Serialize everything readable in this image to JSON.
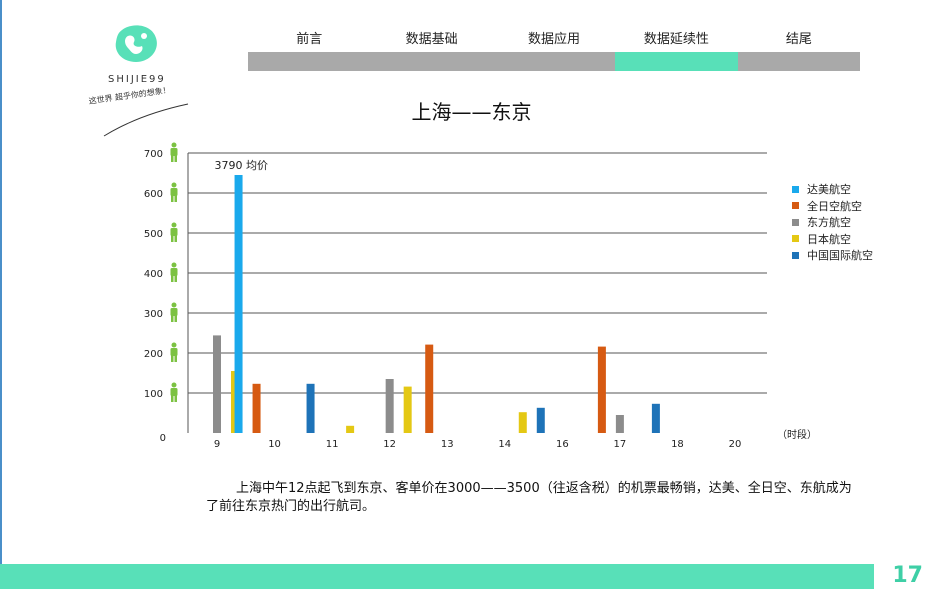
{
  "logo": {
    "brand": "SHIJIE99",
    "slogan": "这世界 超乎你的想象！"
  },
  "nav": {
    "items": [
      {
        "label": "前言",
        "active": false
      },
      {
        "label": "数据基础",
        "active": false
      },
      {
        "label": "数据应用",
        "active": false
      },
      {
        "label": "数据延续性",
        "active": true
      },
      {
        "label": "结尾",
        "active": false
      }
    ]
  },
  "colors": {
    "accent": "#58e0b8",
    "nav_inactive": "#a9a9a9",
    "person_icon": "#7cc242"
  },
  "icons": {
    "y_axis_marker": "person-icon"
  },
  "chart_data": {
    "type": "bar",
    "title": "上海——东京",
    "categories": [
      "9",
      "10",
      "11",
      "12",
      "13",
      "14",
      "16",
      "17",
      "18",
      "20"
    ],
    "xlabel": "（时段）",
    "ylabel": "",
    "ylim": [
      0,
      700
    ],
    "yticks": [
      0,
      100,
      200,
      300,
      400,
      500,
      600,
      700
    ],
    "grid": true,
    "legend_position": "right",
    "series": [
      {
        "name": "达美航空",
        "color": "#1aa9ec",
        "values": [
          0,
          645,
          0,
          0,
          0,
          0,
          0,
          0,
          0,
          0
        ]
      },
      {
        "name": "全日空航空",
        "color": "#d65a12",
        "values": [
          0,
          123,
          0,
          0,
          221,
          0,
          0,
          216,
          0,
          0
        ]
      },
      {
        "name": "东方航空",
        "color": "#8c8c8c",
        "values": [
          244,
          0,
          0,
          135,
          0,
          0,
          0,
          45,
          0,
          0
        ]
      },
      {
        "name": "日本航空",
        "color": "#e4c814",
        "values": [
          155,
          0,
          18,
          116,
          0,
          52,
          0,
          0,
          0,
          0
        ]
      },
      {
        "name": "中国国际航空",
        "color": "#1e73b8",
        "values": [
          0,
          123,
          0,
          0,
          0,
          63,
          0,
          73,
          0,
          0
        ]
      }
    ],
    "annotations": [
      {
        "text": "3790 均价",
        "category": "10",
        "series": "达美航空"
      }
    ]
  },
  "paragraph": "上海中午12点起飞到东京、客单价在3000——3500（往返含税）的机票最畅销，达美、全日空、东航成为了前往东京热门的出行航司。",
  "page_number": "17"
}
